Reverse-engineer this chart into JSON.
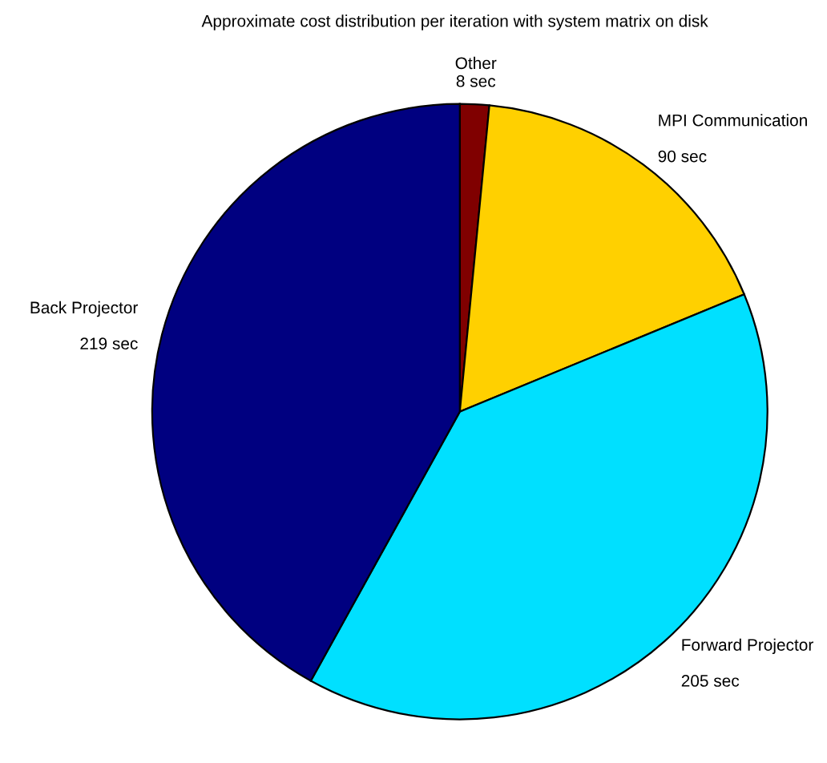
{
  "chart_data": {
    "type": "pie",
    "title": "Approximate cost distribution per iteration with system matrix on disk",
    "categories": [
      "Other",
      "MPI Communication",
      "Forward Projector",
      "Back Projector"
    ],
    "values": [
      8,
      90,
      205,
      219
    ],
    "value_labels": [
      "8 sec",
      "90 sec",
      "205 sec",
      "219 sec"
    ],
    "colors": [
      "#800000",
      "#ffd000",
      "#00e0ff",
      "#000080"
    ]
  }
}
